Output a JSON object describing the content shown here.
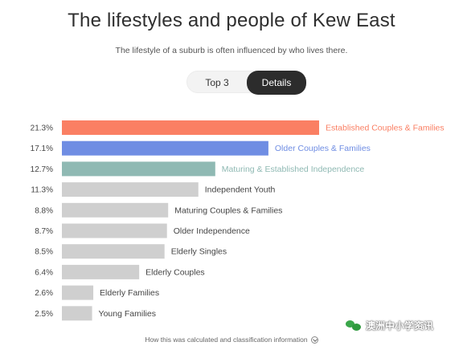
{
  "header": {
    "title": "The lifestyles and people of Kew East",
    "subtitle": "The lifestyle of a suburb is often influenced by who lives there."
  },
  "toggle": {
    "options": [
      "Top 3",
      "Details"
    ],
    "selected": "Details"
  },
  "colors": {
    "highlight_1": "#fa7f63",
    "highlight_2": "#6f8de3",
    "highlight_3": "#8fb9b3",
    "default_bar": "#cfcfcf",
    "default_label": "#444444"
  },
  "chart_data": {
    "type": "bar",
    "orientation": "horizontal",
    "value_format": "percent",
    "categories": [
      "Established Couples & Families",
      "Older Couples & Families",
      "Maturing & Established Independence",
      "Independent Youth",
      "Maturing Couples & Families",
      "Older Independence",
      "Elderly Singles",
      "Elderly Couples",
      "Elderly Families",
      "Young Families"
    ],
    "values": [
      21.3,
      17.1,
      12.7,
      11.3,
      8.8,
      8.7,
      8.5,
      6.4,
      2.6,
      2.5
    ],
    "value_labels": [
      "21.3%",
      "17.1%",
      "12.7%",
      "11.3%",
      "8.8%",
      "8.7%",
      "8.5%",
      "6.4%",
      "2.6%",
      "2.5%"
    ],
    "highlighted_colors": [
      "#fa7f63",
      "#6f8de3",
      "#8fb9b3"
    ],
    "xlim": [
      0,
      21.3
    ],
    "grid": false,
    "legend": "none"
  },
  "footer": {
    "link_text": "How this was calculated and classification information"
  },
  "watermark": {
    "text": "澳洲中小学资讯"
  }
}
